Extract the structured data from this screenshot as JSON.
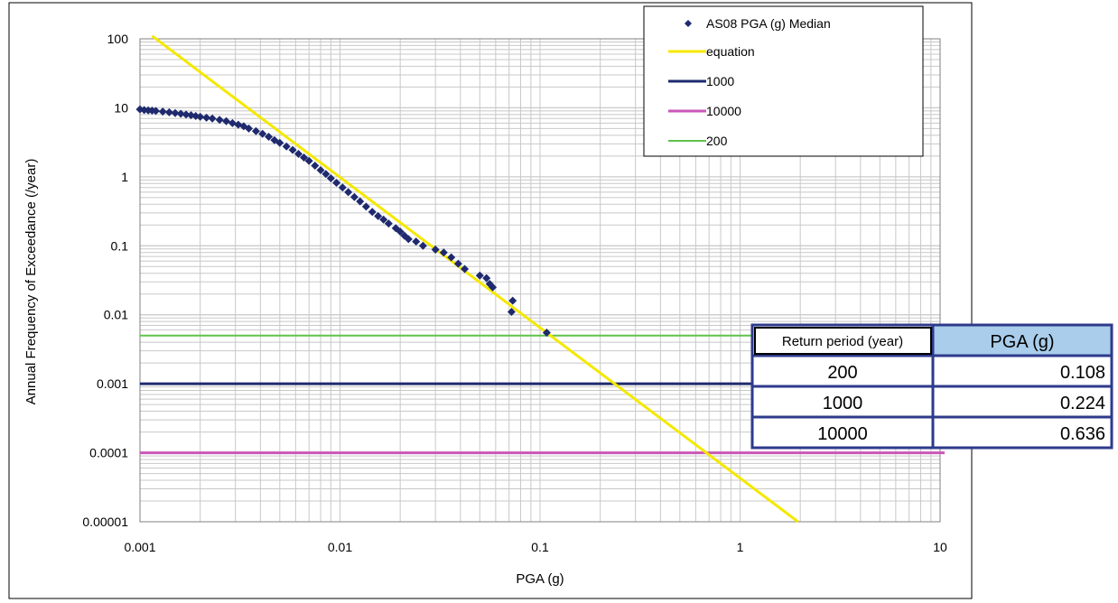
{
  "chart_data": {
    "type": "scatter",
    "xlabel": "PGA (g)",
    "ylabel": "Annual Frequency of Exceedance (/year)",
    "x_scale": "log",
    "y_scale": "log",
    "xlim": [
      0.001,
      10
    ],
    "ylim": [
      1e-05,
      100
    ],
    "x_ticks": [
      "0.001",
      "0.01",
      "0.1",
      "1",
      "10"
    ],
    "y_ticks": [
      "100",
      "10",
      "1",
      "0.1",
      "0.01",
      "0.001",
      "0.0001",
      "0.00001"
    ],
    "grid": true,
    "legend_position": "top-right",
    "series": [
      {
        "name": "AS08 PGA (g) Median",
        "kind": "scatter",
        "marker": "diamond",
        "color": "#1f2a6e",
        "points": [
          [
            0.001,
            9.5
          ],
          [
            0.00105,
            9.3
          ],
          [
            0.0011,
            9.2
          ],
          [
            0.00115,
            9.1
          ],
          [
            0.0012,
            9.0
          ],
          [
            0.0013,
            8.8
          ],
          [
            0.0014,
            8.6
          ],
          [
            0.0015,
            8.4
          ],
          [
            0.0016,
            8.2
          ],
          [
            0.0017,
            8.0
          ],
          [
            0.0018,
            7.8
          ],
          [
            0.0019,
            7.6
          ],
          [
            0.002,
            7.4
          ],
          [
            0.00215,
            7.2
          ],
          [
            0.0023,
            7.0
          ],
          [
            0.0025,
            6.7
          ],
          [
            0.0027,
            6.4
          ],
          [
            0.0029,
            6.0
          ],
          [
            0.0031,
            5.7
          ],
          [
            0.0033,
            5.4
          ],
          [
            0.0035,
            5.0
          ],
          [
            0.0038,
            4.6
          ],
          [
            0.0041,
            4.2
          ],
          [
            0.0044,
            3.8
          ],
          [
            0.0047,
            3.4
          ],
          [
            0.005,
            3.1
          ],
          [
            0.0054,
            2.75
          ],
          [
            0.0058,
            2.45
          ],
          [
            0.0062,
            2.15
          ],
          [
            0.0066,
            1.9
          ],
          [
            0.007,
            1.7
          ],
          [
            0.0075,
            1.45
          ],
          [
            0.008,
            1.25
          ],
          [
            0.0085,
            1.1
          ],
          [
            0.009,
            0.95
          ],
          [
            0.0096,
            0.82
          ],
          [
            0.0103,
            0.7
          ],
          [
            0.011,
            0.6
          ],
          [
            0.0118,
            0.51
          ],
          [
            0.0126,
            0.44
          ],
          [
            0.0135,
            0.37
          ],
          [
            0.0145,
            0.31
          ],
          [
            0.0155,
            0.27
          ],
          [
            0.0165,
            0.24
          ],
          [
            0.0175,
            0.21
          ],
          [
            0.019,
            0.18
          ],
          [
            0.02,
            0.16
          ],
          [
            0.021,
            0.14
          ],
          [
            0.022,
            0.125
          ],
          [
            0.024,
            0.115
          ],
          [
            0.026,
            0.1
          ],
          [
            0.03,
            0.088
          ],
          [
            0.033,
            0.08
          ],
          [
            0.036,
            0.068
          ],
          [
            0.039,
            0.055
          ],
          [
            0.042,
            0.046
          ],
          [
            0.05,
            0.037
          ],
          [
            0.054,
            0.034
          ],
          [
            0.056,
            0.028
          ],
          [
            0.058,
            0.025
          ],
          [
            0.073,
            0.016
          ],
          [
            0.072,
            0.011
          ],
          [
            0.108,
            0.0055
          ]
        ]
      },
      {
        "name": "equation",
        "kind": "line",
        "color": "#f5e800",
        "points": [
          [
            0.00115,
            110
          ],
          [
            1.95,
            1e-05
          ]
        ]
      },
      {
        "name": "1000",
        "kind": "hline",
        "color": "#1f2a6e",
        "y": 0.001
      },
      {
        "name": "10000",
        "kind": "hline",
        "color": "#c957b8",
        "y": 0.0001
      },
      {
        "name": "200",
        "kind": "hline",
        "color": "#5fc24a",
        "y": 0.005
      }
    ]
  },
  "table": {
    "headers": [
      "Return period (year)",
      "PGA (g)"
    ],
    "rows": [
      [
        "200",
        "0.108"
      ],
      [
        "1000",
        "0.224"
      ],
      [
        "10000",
        "0.636"
      ]
    ],
    "header_fill": "#a9cdea",
    "border_color": "#2e3a8c"
  }
}
